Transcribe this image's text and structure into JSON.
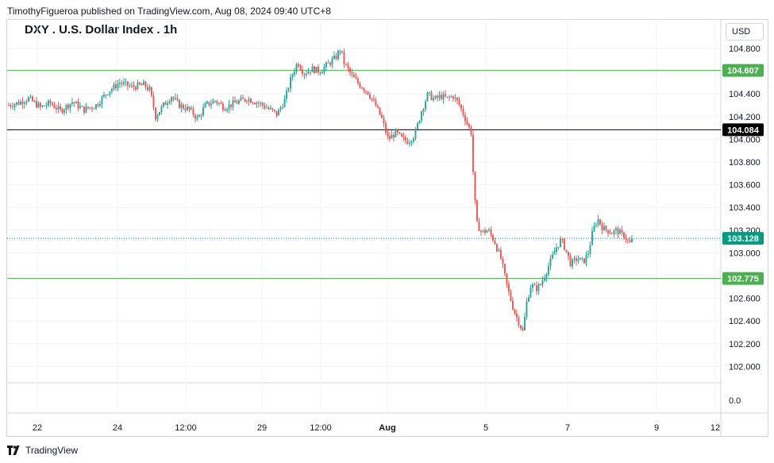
{
  "header": {
    "publisher_line": "TimothyFigueroa published on TradingView.com, Aug 08, 2024 09:40 UTC+8"
  },
  "footer": {
    "brand": "TradingView",
    "logo_icon": "tradingview-logo-icon"
  },
  "colors": {
    "up": "#26a69a",
    "down": "#ef5350",
    "level_green": "#4caf50",
    "level_black": "#000000",
    "last_price": "#089981",
    "grid": "#f0f3fa"
  },
  "chart_data": {
    "type": "candlestick",
    "title": "DXY . U.S. Dollar Index . 1h",
    "currency": "USD",
    "y_ticks": [
      "104.800",
      "104.600",
      "104.400",
      "104.200",
      "104.000",
      "103.800",
      "103.600",
      "103.400",
      "103.200",
      "103.000",
      "102.800",
      "102.600",
      "102.400",
      "102.200",
      "102.000"
    ],
    "y_tick_values": [
      104.8,
      104.6,
      104.4,
      104.2,
      104.0,
      103.8,
      103.6,
      103.4,
      103.2,
      103.0,
      102.8,
      102.6,
      102.4,
      102.2,
      102.0
    ],
    "lower_pane_tick": "0.0",
    "ylim": [
      101.7,
      104.95
    ],
    "x_ticks": [
      "22",
      "24",
      "12:00",
      "29",
      "12:00",
      "Aug",
      "5",
      "7",
      "9",
      "12"
    ],
    "price_levels": [
      {
        "label": "104.607",
        "value": 104.607,
        "style": "green"
      },
      {
        "label": "104.084",
        "value": 104.084,
        "style": "black"
      },
      {
        "label": "103.128",
        "value": 103.128,
        "style": "last"
      },
      {
        "label": "102.775",
        "value": 102.775,
        "style": "green"
      }
    ],
    "close_path": [
      [
        0,
        104.3
      ],
      [
        12,
        104.32
      ],
      [
        25,
        104.36
      ],
      [
        40,
        104.28
      ],
      [
        52,
        104.32
      ],
      [
        65,
        104.25
      ],
      [
        80,
        104.33
      ],
      [
        95,
        104.26
      ],
      [
        110,
        104.3
      ],
      [
        125,
        104.42
      ],
      [
        140,
        104.5
      ],
      [
        155,
        104.46
      ],
      [
        170,
        104.48
      ],
      [
        178,
        104.43
      ],
      [
        185,
        104.2
      ],
      [
        195,
        104.3
      ],
      [
        205,
        104.38
      ],
      [
        215,
        104.3
      ],
      [
        228,
        104.26
      ],
      [
        238,
        104.18
      ],
      [
        248,
        104.3
      ],
      [
        260,
        104.34
      ],
      [
        272,
        104.28
      ],
      [
        285,
        104.32
      ],
      [
        300,
        104.36
      ],
      [
        315,
        104.32
      ],
      [
        325,
        104.28
      ],
      [
        338,
        104.22
      ],
      [
        348,
        104.35
      ],
      [
        356,
        104.55
      ],
      [
        364,
        104.68
      ],
      [
        372,
        104.58
      ],
      [
        382,
        104.62
      ],
      [
        392,
        104.6
      ],
      [
        402,
        104.66
      ],
      [
        412,
        104.72
      ],
      [
        418,
        104.8
      ],
      [
        422,
        104.68
      ],
      [
        432,
        104.56
      ],
      [
        442,
        104.48
      ],
      [
        452,
        104.42
      ],
      [
        462,
        104.3
      ],
      [
        470,
        104.18
      ],
      [
        478,
        104.0
      ],
      [
        488,
        104.06
      ],
      [
        496,
        104.0
      ],
      [
        504,
        103.98
      ],
      [
        512,
        104.05
      ],
      [
        520,
        104.25
      ],
      [
        528,
        104.4
      ],
      [
        536,
        104.35
      ],
      [
        544,
        104.38
      ],
      [
        552,
        104.36
      ],
      [
        560,
        104.38
      ],
      [
        568,
        104.3
      ],
      [
        574,
        104.2
      ],
      [
        580,
        104.1
      ],
      [
        583,
        104.05
      ],
      [
        586,
        103.55
      ],
      [
        590,
        103.25
      ],
      [
        596,
        103.18
      ],
      [
        604,
        103.2
      ],
      [
        612,
        103.1
      ],
      [
        620,
        102.95
      ],
      [
        628,
        102.7
      ],
      [
        636,
        102.5
      ],
      [
        642,
        102.4
      ],
      [
        648,
        102.3
      ],
      [
        652,
        102.55
      ],
      [
        658,
        102.72
      ],
      [
        664,
        102.68
      ],
      [
        670,
        102.72
      ],
      [
        678,
        102.85
      ],
      [
        684,
        102.95
      ],
      [
        690,
        103.05
      ],
      [
        696,
        103.12
      ],
      [
        702,
        103.02
      ],
      [
        708,
        102.9
      ],
      [
        716,
        102.95
      ],
      [
        724,
        102.92
      ],
      [
        730,
        103.0
      ],
      [
        736,
        103.2
      ],
      [
        742,
        103.3
      ],
      [
        748,
        103.22
      ],
      [
        754,
        103.2
      ],
      [
        760,
        103.18
      ],
      [
        766,
        103.2
      ],
      [
        772,
        103.16
      ],
      [
        776,
        103.15
      ],
      [
        782,
        103.08
      ],
      [
        786,
        103.12
      ]
    ]
  }
}
